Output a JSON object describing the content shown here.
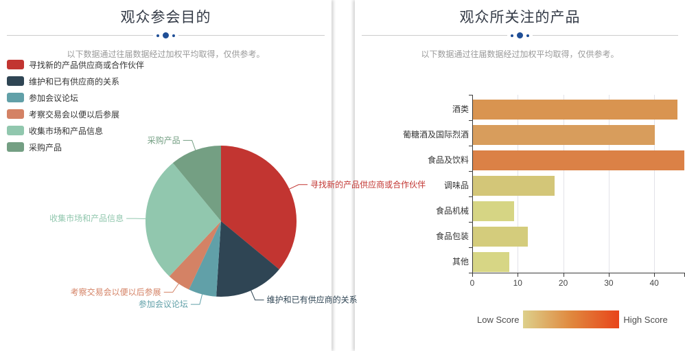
{
  "accent_color": "#1f4e96",
  "left_panel": {
    "title": "观众参会目的",
    "subtitle": "以下数据通过往届数据经过加权平均取得，仅供参考。"
  },
  "right_panel": {
    "title": "观众所关注的产品",
    "subtitle": "以下数据通过往届数据经过加权平均取得，仅供参考。",
    "visual_map": {
      "low_label": "Low Score",
      "high_label": "High Score",
      "gradient": [
        "#ddd08b",
        "#e0883e",
        "#e8441a"
      ]
    }
  },
  "chart_data": [
    {
      "type": "pie",
      "title": "观众参会目的",
      "labels": [
        "寻找新的产品供应商或合作伙伴",
        "维护和已有供应商的关系",
        "参加会议论坛",
        "考察交易会以便以后参展",
        "收集市场和产品信息",
        "采购产品"
      ],
      "values": [
        36,
        15,
        6,
        5,
        27,
        11
      ],
      "values_estimated_from_angles": true,
      "colors": [
        "#c23531",
        "#2f4554",
        "#61a0a8",
        "#d48265",
        "#91c7ae",
        "#749f83"
      ],
      "start_angle": "top",
      "direction": "clockwise",
      "legend_position": "top-left"
    },
    {
      "type": "bar",
      "orientation": "horizontal",
      "title": "观众所关注的产品",
      "categories": [
        "酒类",
        "葡糖酒及国际烈酒",
        "食品及饮料",
        "调味品",
        "食品机械",
        "食品包装",
        "其他"
      ],
      "values": [
        45,
        40,
        47,
        18,
        9,
        12,
        8
      ],
      "values_estimated_from_gridlines": true,
      "colors": [
        "#d99450",
        "#d89d5c",
        "#db8146",
        "#d3c678",
        "#d6d584",
        "#d4cc7c",
        "#d7d685"
      ],
      "xlabel": "",
      "ylabel": "",
      "xlim": [
        0,
        47
      ],
      "x_ticks": [
        0,
        10,
        20,
        30,
        40
      ],
      "grid": true,
      "note": "食品及饮料 bar is clipped at the right edge of the panel"
    }
  ]
}
